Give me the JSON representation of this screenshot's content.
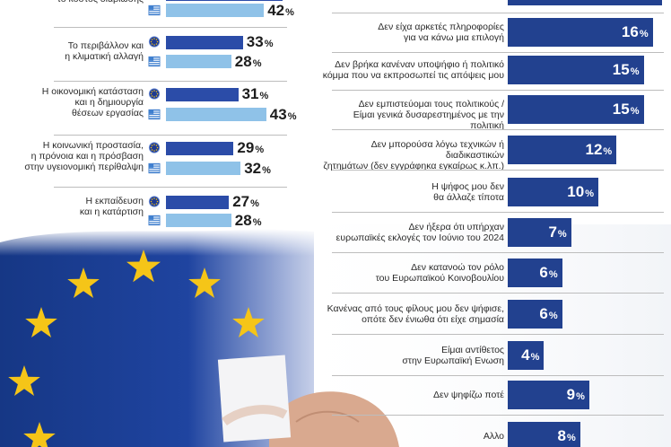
{
  "chart_data": [
    {
      "type": "bar",
      "orientation": "horizontal",
      "categories": [
        "το κόστος διαβίωσης",
        "Το περιβάλλον και η κλιματική αλλαγή",
        "Η οικονομική κατάσταση και η δημιουργία θέσεων εργασίας",
        "Η κοινωνική προστασία, η πρόνοια και η πρόσβαση στην υγειονομική περίθαλψη",
        "Η εκπαίδευση και η κατάρτιση"
      ],
      "series": [
        {
          "name": "",
          "icon": "eu-flag-icon",
          "color": "#2b4ca8",
          "values": [
            null,
            33,
            31,
            29,
            27
          ]
        },
        {
          "name": "",
          "icon": "greek-flag-icon",
          "color": "#8fc2e8",
          "values": [
            42,
            28,
            43,
            32,
            28
          ]
        }
      ],
      "unit": "%"
    },
    {
      "type": "bar",
      "orientation": "horizontal",
      "categories": [
        "Δεν είχα αρκετές πληροφορίες για να κάνω μια επιλογή",
        "Δεν βρήκα κανέναν υποψήφιο ή πολιτικό κόμμα που να εκπροσωπεί τις απόψεις μου",
        "Δεν εμπιστεύομαι τους πολιτικούς / Είμαι γενικά δυσαρεστημένος με την πολιτική",
        "Δεν μπορούσα λόγω τεχνικών ή διαδικαστικών ζητημάτων (δεν εγγράφηκα εγκαίρως κ.λπ.)",
        "Η ψήφος μου δεν θα άλλαζε τίποτα",
        "Δεν ήξερα ότι υπήρχαν ευρωπαϊκές εκλογές τον Ιούνιο του 2024",
        "Δεν κατανοώ τον ρόλο του Ευρωπαϊκού Κοινοβουλίου",
        "Κανένας από τους φίλους μου δεν ψήφισε, οπότε δεν ένιωθα ότι είχε σημασία",
        "Είμαι αντίθετος στην Ευρωπαϊκή Ενωση",
        "Δεν ψηφίζω ποτέ",
        "Αλλο"
      ],
      "values": [
        16,
        15,
        15,
        12,
        10,
        7,
        6,
        6,
        4,
        9,
        8
      ],
      "unit": "%",
      "color": "#22418f"
    }
  ],
  "left_labels": [
    [
      "το κόστος διαβίωσης"
    ],
    [
      "Το περιβάλλον και",
      "η κλιματική αλλαγή"
    ],
    [
      "Η οικονομική κατάσταση",
      "και η δημιουργία",
      "θέσεων εργασίας"
    ],
    [
      "Η κοινωνική προστασία,",
      "η πρόνοια και η πρόσβαση",
      "στην υγειονομική περίθαλψη"
    ],
    [
      "Η εκπαίδευση",
      "και η κατάρτιση"
    ]
  ],
  "right_labels": [
    [
      "Δεν είχα αρκετές πληροφορίες",
      "για να κάνω μια επιλογή"
    ],
    [
      "Δεν βρήκα κανέναν υποψήφιο ή πολιτικό",
      "κόμμα που να εκπροσωπεί τις απόψεις μου"
    ],
    [
      "Δεν εμπιστεύομαι τους πολιτικούς /",
      "Είμαι γενικά δυσαρεστημένος με την πολιτική"
    ],
    [
      "Δεν μπορούσα λόγω τεχνικών ή διαδικαστικών",
      "ζητημάτων (δεν εγγράφηκα εγκαίρως κ.λπ.)"
    ],
    [
      "Η ψήφος μου δεν",
      "θα άλλαζε τίποτα"
    ],
    [
      "Δεν ήξερα ότι υπήρχαν",
      "ευρωπαϊκές εκλογές τον Ιούνιο του 2024"
    ],
    [
      "Δεν κατανοώ τον ρόλο",
      "του Ευρωπαϊκού Κοινοβουλίου"
    ],
    [
      "Κανένας από τους φίλους μου δεν ψήφισε,",
      "οπότε δεν ένιωθα ότι είχε σημασία"
    ],
    [
      "Είμαι αντίθετος",
      "στην Ευρωπαϊκή Ενωση"
    ],
    [
      "Δεν ψηφίζω ποτέ"
    ],
    [
      "Αλλο"
    ]
  ],
  "percent_sign": "%",
  "colors": {
    "eu_bar": "#2b4ca8",
    "gr_bar": "#8fc2e8",
    "right_bar": "#22418f",
    "flag_blue": "#1d3a93",
    "star": "#f5c518"
  }
}
